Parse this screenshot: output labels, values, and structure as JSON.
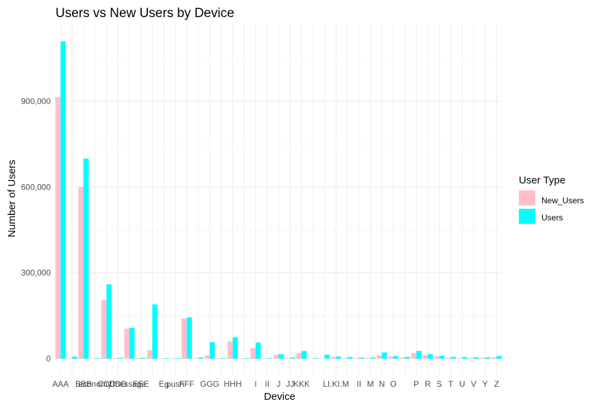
{
  "chart_data": {
    "type": "bar",
    "title": "Users vs New Users by Device",
    "xlabel": "Device",
    "ylabel": "Number of Users",
    "ylim": [
      0,
      1150000
    ],
    "yticks": [
      0,
      300000,
      600000,
      900000
    ],
    "ytick_labels": [
      "0",
      "300,000",
      "600,000",
      "900,000"
    ],
    "grid": true,
    "legend": {
      "title": "User Type",
      "position": "right"
    },
    "categories": [
      "AAA",
      "B",
      "BBB",
      "economy",
      "CCC",
      "DDD",
      "message",
      "EEE",
      "EE",
      "Eg",
      "push",
      "FFF",
      "F",
      "GGG",
      "G",
      "HHH",
      "H",
      "I",
      "II",
      "J",
      "JJ",
      "KKK",
      "K",
      "L",
      "LI.KI.",
      "M",
      "II",
      "M",
      "N",
      "O",
      "O",
      "P",
      "R",
      "S",
      "T",
      "U",
      "V",
      "Y",
      "Z"
    ],
    "series": [
      {
        "name": "New_Users",
        "color": "#ffbfcc",
        "values": [
          915000,
          1000,
          600000,
          500,
          205000,
          2000,
          105000,
          2000,
          30000,
          1000,
          1000,
          140000,
          2000,
          12000,
          1000,
          60000,
          1000,
          37000,
          1000,
          14000,
          2000,
          20000,
          1000,
          1000,
          6000,
          3000,
          2000,
          2000,
          12000,
          8000,
          4000,
          20000,
          12000,
          8000,
          3000,
          3000,
          3000,
          3000,
          5000
        ]
      },
      {
        "name": "Users",
        "color": "#00ffff",
        "values": [
          1110000,
          7000,
          700000,
          2000,
          260000,
          3000,
          108000,
          3000,
          190000,
          2000,
          2000,
          145000,
          4000,
          58000,
          2000,
          75000,
          2000,
          57000,
          2000,
          16000,
          4000,
          27000,
          2000,
          14000,
          8000,
          6000,
          4000,
          4000,
          22000,
          9000,
          6000,
          27000,
          16000,
          10000,
          6000,
          6000,
          5000,
          5000,
          10000
        ]
      }
    ],
    "x_tick_labels": [
      {
        "text": "AAA",
        "cat": 0
      },
      {
        "text": "BBB",
        "cat": 2
      },
      {
        "text": "economy",
        "cat": 3
      },
      {
        "text": "CCC",
        "cat": 4
      },
      {
        "text": "DDD",
        "cat": 5
      },
      {
        "text": "message",
        "cat": 6
      },
      {
        "text": "EEE",
        "cat": 7
      },
      {
        "text": "Eg",
        "cat": 9
      },
      {
        "text": "push",
        "cat": 10
      },
      {
        "text": "FFF",
        "cat": 11
      },
      {
        "text": "GGG",
        "cat": 13
      },
      {
        "text": "HHH",
        "cat": 15
      },
      {
        "text": "I",
        "cat": 17
      },
      {
        "text": "II",
        "cat": 18
      },
      {
        "text": "J",
        "cat": 19
      },
      {
        "text": "JJ",
        "cat": 20
      },
      {
        "text": "KKK",
        "cat": 21
      },
      {
        "text": "LI.KI.M",
        "cat": 24
      },
      {
        "text": "II",
        "cat": 26
      },
      {
        "text": "M",
        "cat": 27
      },
      {
        "text": "N",
        "cat": 28
      },
      {
        "text": "O",
        "cat": 29
      },
      {
        "text": "P",
        "cat": 31
      },
      {
        "text": "R",
        "cat": 32
      },
      {
        "text": "S",
        "cat": 33
      },
      {
        "text": "T",
        "cat": 34
      },
      {
        "text": "U",
        "cat": 35
      },
      {
        "text": "V",
        "cat": 36
      },
      {
        "text": "Y",
        "cat": 37
      },
      {
        "text": "Z",
        "cat": 38
      }
    ]
  }
}
